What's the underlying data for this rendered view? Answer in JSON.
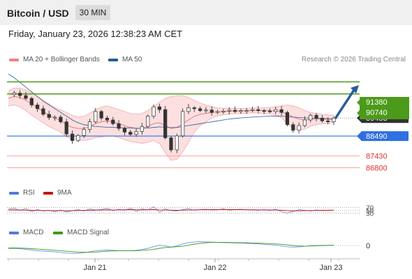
{
  "header": {
    "title": "Bitcoin / USD",
    "timeframe": "30 MIN"
  },
  "date_label": "Friday, January 23, 2026 12:38:23 AM CET",
  "legend_main": [
    {
      "label": "MA 20 + Bollinger Bands",
      "color": "#f08080"
    },
    {
      "label": "MA 50",
      "color": "#2a5b9b"
    }
  ],
  "credit": "Research © 2026 Trading Central",
  "chart_data": {
    "type": "candlestick",
    "ylim": [
      86000,
      92400
    ],
    "last_price": 89453,
    "resistance_levels": [
      91380,
      90740
    ],
    "support_levels": [
      88490
    ],
    "lower_levels": [
      87430,
      86800
    ],
    "price_labels": [
      {
        "text": "91380",
        "value": 91380,
        "style": "resistance"
      },
      {
        "text": "90740",
        "value": 90740,
        "style": "resistance"
      },
      {
        "text": "89453",
        "value": 89453,
        "style": "last"
      },
      {
        "text": "88490",
        "value": 88490,
        "style": "support"
      },
      {
        "text": "87430",
        "value": 87430,
        "style": "level"
      },
      {
        "text": "86800",
        "value": 86800,
        "style": "level"
      }
    ],
    "x_tick_labels": [
      "Jan 21",
      "Jan 22",
      "Jan 23"
    ],
    "price_path": [
      90700,
      90780,
      90650,
      90500,
      90150,
      89950,
      89650,
      89480,
      89500,
      89250,
      88600,
      88250,
      88520,
      88850,
      89250,
      89800,
      89450,
      89350,
      89150,
      88900,
      88700,
      88580,
      88740,
      89000,
      89550,
      90050,
      89900,
      88400,
      87750,
      88500,
      89800,
      90000,
      89950,
      89850,
      89880,
      89750,
      89800,
      89820,
      89870,
      89800,
      89850,
      89850,
      89900,
      89850,
      89830,
      89800,
      89900,
      89750,
      89100,
      88800,
      89050,
      89350,
      89600,
      89450,
      89300,
      89250,
      89450
    ],
    "ma20": [
      90500,
      90600,
      90550,
      90400,
      90200,
      90000,
      89800,
      89600,
      89450,
      89300,
      89100,
      88950,
      88900,
      88900,
      89000,
      89150,
      89250,
      89300,
      89250,
      89150,
      89050,
      88950,
      88900,
      88900,
      89000,
      89150,
      89200,
      89050,
      88900,
      88950,
      89150,
      89350,
      89550,
      89650,
      89700,
      89750,
      89780,
      89800,
      89820,
      89820,
      89830,
      89840,
      89850,
      89850,
      89850,
      89840,
      89830,
      89780,
      89650,
      89500,
      89400,
      89350,
      89380,
      89400,
      89400,
      89380,
      89400
    ],
    "bb_upper": [
      90900,
      91050,
      91050,
      90950,
      90800,
      90600,
      90400,
      90200,
      90000,
      89900,
      89750,
      89600,
      89500,
      89550,
      89700,
      89900,
      90050,
      90100,
      90000,
      89900,
      89800,
      89700,
      89650,
      89700,
      89850,
      90050,
      90300,
      90500,
      90600,
      90650,
      90650,
      90550,
      90400,
      90250,
      90150,
      90050,
      90000,
      89980,
      89970,
      89960,
      89960,
      89970,
      89980,
      89990,
      90000,
      90010,
      90050,
      90100,
      90150,
      90100,
      90000,
      89850,
      89750,
      89700,
      89650,
      89620,
      89600
    ],
    "bb_lower": [
      90100,
      90150,
      90050,
      89850,
      89600,
      89400,
      89200,
      89000,
      88850,
      88700,
      88450,
      88300,
      88300,
      88250,
      88300,
      88400,
      88450,
      88500,
      88500,
      88400,
      88300,
      88200,
      88150,
      88100,
      88150,
      88250,
      88100,
      87600,
      87200,
      87250,
      87650,
      88150,
      88700,
      89050,
      89250,
      89450,
      89560,
      89620,
      89670,
      89680,
      89700,
      89710,
      89720,
      89710,
      89700,
      89670,
      89610,
      89460,
      89150,
      88900,
      88800,
      88850,
      89010,
      89100,
      89150,
      89140,
      89200
    ],
    "ma50": [
      91800,
      91600,
      91350,
      91100,
      90850,
      90600,
      90350,
      90150,
      89950,
      89750,
      89550,
      89350,
      89200,
      89100,
      89050,
      89000,
      88980,
      88960,
      88950,
      88940,
      88930,
      88920,
      88910,
      88900,
      88920,
      88950,
      88980,
      88960,
      88940,
      88950,
      89000,
      89050,
      89100,
      89150,
      89200,
      89250,
      89300,
      89350,
      89400,
      89430,
      89460,
      89480,
      89500,
      89520,
      89540,
      89550,
      89560,
      89550,
      89530,
      89500,
      89480,
      89460,
      89450,
      89440,
      89430,
      89420,
      89410
    ],
    "forecast_arrow": {
      "from": 89453,
      "to": 91100
    },
    "rsi_panel": {
      "legend": [
        {
          "label": "RSI",
          "color": "#5577dd"
        },
        {
          "label": "9MA",
          "color": "#cc1111"
        }
      ],
      "levels": [
        "70",
        "50",
        "30"
      ],
      "ylim": [
        0,
        100
      ],
      "rsi": [
        58,
        65,
        48,
        62,
        40,
        55,
        45,
        50,
        40,
        52,
        38,
        47,
        55,
        44,
        60,
        52,
        56,
        63,
        48,
        57,
        50,
        65,
        42,
        60,
        52,
        75,
        35,
        60,
        48,
        45,
        55,
        62,
        50,
        56,
        58,
        52,
        54,
        60,
        51,
        55,
        57,
        53,
        52,
        50,
        55,
        48,
        58,
        40,
        30,
        42,
        55,
        50,
        45,
        52,
        48,
        50,
        51
      ],
      "ma9": [
        52,
        53,
        52,
        51,
        50,
        49,
        48,
        48,
        47,
        47,
        46,
        47,
        48,
        49,
        50,
        51,
        52,
        53,
        52,
        53,
        54,
        55,
        54,
        53,
        54,
        55,
        53,
        52,
        51,
        50,
        51,
        52,
        53,
        54,
        54,
        55,
        55,
        56,
        55,
        55,
        55,
        54,
        54,
        53,
        53,
        52,
        52,
        50,
        48,
        46,
        46,
        47,
        48,
        49,
        50,
        50,
        51
      ]
    },
    "macd_panel": {
      "legend": [
        {
          "label": "MACD",
          "color": "#5577dd"
        },
        {
          "label": "MACD Signal",
          "color": "#3a9a1a"
        }
      ],
      "zero_label": "0",
      "ylim": [
        -600,
        600
      ],
      "macd": [
        -150,
        -140,
        -160,
        -190,
        -230,
        -260,
        -280,
        -300,
        -320,
        -350,
        -380,
        -400,
        -390,
        -360,
        -320,
        -270,
        -240,
        -230,
        -240,
        -260,
        -270,
        -260,
        -240,
        -200,
        -140,
        -60,
        20,
        -20,
        -80,
        -20,
        80,
        150,
        180,
        190,
        185,
        170,
        160,
        150,
        140,
        130,
        120,
        110,
        100,
        80,
        60,
        40,
        20,
        -20,
        -60,
        -80,
        -70,
        -40,
        -10,
        5,
        10,
        12,
        15
      ],
      "signal": [
        -120,
        -125,
        -130,
        -140,
        -160,
        -180,
        -200,
        -220,
        -240,
        -260,
        -285,
        -310,
        -330,
        -340,
        -340,
        -330,
        -310,
        -290,
        -275,
        -270,
        -270,
        -268,
        -262,
        -250,
        -225,
        -190,
        -140,
        -100,
        -80,
        -60,
        -30,
        20,
        70,
        110,
        140,
        155,
        160,
        160,
        155,
        150,
        145,
        138,
        130,
        120,
        108,
        95,
        80,
        60,
        30,
        0,
        -20,
        -30,
        -25,
        -15,
        -5,
        2,
        8
      ]
    }
  }
}
